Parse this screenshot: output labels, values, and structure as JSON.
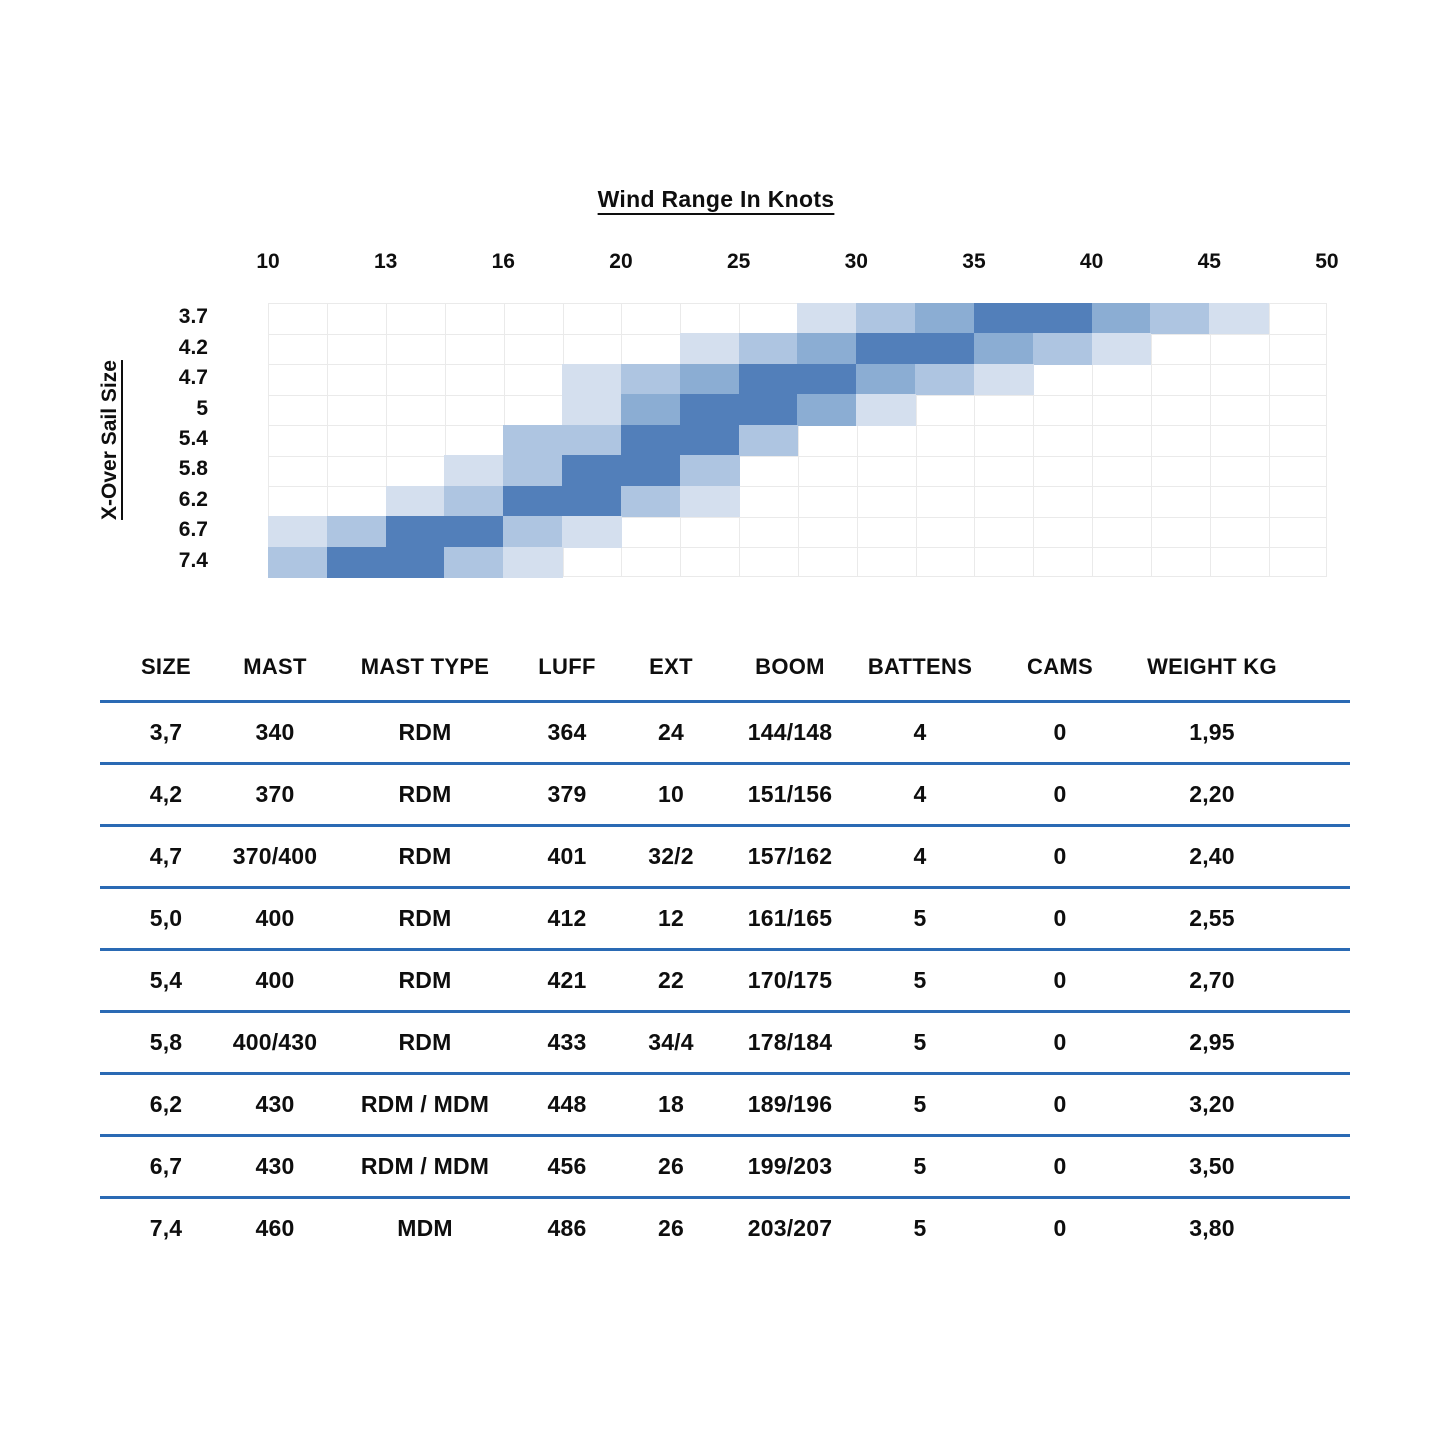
{
  "chart_data": {
    "type": "heatmap",
    "title": "Wind Range In Knots",
    "xlabel": "Wind Range In Knots",
    "ylabel": "X-Over Sail Size",
    "x_axis": {
      "ticks": [
        10,
        13,
        16,
        20,
        25,
        30,
        35,
        40,
        45,
        50
      ],
      "unit_boundaries_knots": [
        10,
        11.5,
        13,
        14.5,
        16,
        18,
        20,
        22.5,
        25,
        27.5,
        30,
        32.5,
        35,
        37.5,
        40,
        42.5,
        45,
        47.5,
        50
      ]
    },
    "grid": {
      "columns": 18,
      "rows": 9,
      "line_color": "#eaeaea"
    },
    "legend_note": "cell shade level 1=lightest usable wind, 4=ideal wind range",
    "level_colors": {
      "1": "#d4dfee",
      "2": "#aec5e1",
      "3": "#8badd3",
      "4": "#527fba"
    },
    "rows": [
      {
        "sail_size": "3.7",
        "wind_range_knots": [
          27.5,
          47.5
        ],
        "cells": [
          {
            "u": 9,
            "from_knots": 27.5,
            "to_knots": 30,
            "level": 1
          },
          {
            "u": 10,
            "from_knots": 30,
            "to_knots": 32.5,
            "level": 2
          },
          {
            "u": 11,
            "from_knots": 32.5,
            "to_knots": 35,
            "level": 3
          },
          {
            "u": 12,
            "from_knots": 35,
            "to_knots": 37.5,
            "level": 4
          },
          {
            "u": 13,
            "from_knots": 37.5,
            "to_knots": 40,
            "level": 4
          },
          {
            "u": 14,
            "from_knots": 40,
            "to_knots": 42.5,
            "level": 3
          },
          {
            "u": 15,
            "from_knots": 42.5,
            "to_knots": 45,
            "level": 2
          },
          {
            "u": 16,
            "from_knots": 45,
            "to_knots": 47.5,
            "level": 1
          }
        ]
      },
      {
        "sail_size": "4.2",
        "wind_range_knots": [
          22.5,
          42.5
        ],
        "cells": [
          {
            "u": 7,
            "from_knots": 22.5,
            "to_knots": 25,
            "level": 1
          },
          {
            "u": 8,
            "from_knots": 25,
            "to_knots": 27.5,
            "level": 2
          },
          {
            "u": 9,
            "from_knots": 27.5,
            "to_knots": 30,
            "level": 3
          },
          {
            "u": 10,
            "from_knots": 30,
            "to_knots": 32.5,
            "level": 4
          },
          {
            "u": 11,
            "from_knots": 32.5,
            "to_knots": 35,
            "level": 4
          },
          {
            "u": 12,
            "from_knots": 35,
            "to_knots": 37.5,
            "level": 3
          },
          {
            "u": 13,
            "from_knots": 37.5,
            "to_knots": 40,
            "level": 2
          },
          {
            "u": 14,
            "from_knots": 40,
            "to_knots": 42.5,
            "level": 1
          }
        ]
      },
      {
        "sail_size": "4.7",
        "wind_range_knots": [
          18,
          37.5
        ],
        "cells": [
          {
            "u": 5,
            "from_knots": 18,
            "to_knots": 20,
            "level": 1
          },
          {
            "u": 6,
            "from_knots": 20,
            "to_knots": 22.5,
            "level": 2
          },
          {
            "u": 7,
            "from_knots": 22.5,
            "to_knots": 25,
            "level": 3
          },
          {
            "u": 8,
            "from_knots": 25,
            "to_knots": 27.5,
            "level": 4
          },
          {
            "u": 9,
            "from_knots": 27.5,
            "to_knots": 30,
            "level": 4
          },
          {
            "u": 10,
            "from_knots": 30,
            "to_knots": 32.5,
            "level": 3
          },
          {
            "u": 11,
            "from_knots": 32.5,
            "to_knots": 35,
            "level": 2
          },
          {
            "u": 12,
            "from_knots": 35,
            "to_knots": 37.5,
            "level": 1
          }
        ]
      },
      {
        "sail_size": "5",
        "wind_range_knots": [
          18,
          32.5
        ],
        "cells": [
          {
            "u": 5,
            "from_knots": 18,
            "to_knots": 20,
            "level": 1
          },
          {
            "u": 6,
            "from_knots": 20,
            "to_knots": 22.5,
            "level": 3
          },
          {
            "u": 7,
            "from_knots": 22.5,
            "to_knots": 25,
            "level": 4
          },
          {
            "u": 8,
            "from_knots": 25,
            "to_knots": 27.5,
            "level": 4
          },
          {
            "u": 9,
            "from_knots": 27.5,
            "to_knots": 30,
            "level": 3
          },
          {
            "u": 10,
            "from_knots": 30,
            "to_knots": 32.5,
            "level": 1
          }
        ]
      },
      {
        "sail_size": "5.4",
        "wind_range_knots": [
          16,
          27.5
        ],
        "cells": [
          {
            "u": 4,
            "from_knots": 16,
            "to_knots": 18,
            "level": 2
          },
          {
            "u": 5,
            "from_knots": 18,
            "to_knots": 20,
            "level": 2
          },
          {
            "u": 6,
            "from_knots": 20,
            "to_knots": 22.5,
            "level": 4
          },
          {
            "u": 7,
            "from_knots": 22.5,
            "to_knots": 25,
            "level": 4
          },
          {
            "u": 8,
            "from_knots": 25,
            "to_knots": 27.5,
            "level": 2
          }
        ]
      },
      {
        "sail_size": "5.8",
        "wind_range_knots": [
          14.5,
          25
        ],
        "cells": [
          {
            "u": 3,
            "from_knots": 14.5,
            "to_knots": 16,
            "level": 1
          },
          {
            "u": 4,
            "from_knots": 16,
            "to_knots": 18,
            "level": 2
          },
          {
            "u": 5,
            "from_knots": 18,
            "to_knots": 20,
            "level": 4
          },
          {
            "u": 6,
            "from_knots": 20,
            "to_knots": 22.5,
            "level": 4
          },
          {
            "u": 7,
            "from_knots": 22.5,
            "to_knots": 25,
            "level": 2
          }
        ]
      },
      {
        "sail_size": "6.2",
        "wind_range_knots": [
          13,
          25
        ],
        "cells": [
          {
            "u": 2,
            "from_knots": 13,
            "to_knots": 14.5,
            "level": 1
          },
          {
            "u": 3,
            "from_knots": 14.5,
            "to_knots": 16,
            "level": 2
          },
          {
            "u": 4,
            "from_knots": 16,
            "to_knots": 18,
            "level": 4
          },
          {
            "u": 5,
            "from_knots": 18,
            "to_knots": 20,
            "level": 4
          },
          {
            "u": 6,
            "from_knots": 20,
            "to_knots": 22.5,
            "level": 2
          },
          {
            "u": 7,
            "from_knots": 22.5,
            "to_knots": 25,
            "level": 1
          }
        ]
      },
      {
        "sail_size": "6.7",
        "wind_range_knots": [
          10,
          20
        ],
        "cells": [
          {
            "u": 0,
            "from_knots": 10,
            "to_knots": 11.5,
            "level": 1
          },
          {
            "u": 1,
            "from_knots": 11.5,
            "to_knots": 13,
            "level": 2
          },
          {
            "u": 2,
            "from_knots": 13,
            "to_knots": 14.5,
            "level": 4
          },
          {
            "u": 3,
            "from_knots": 14.5,
            "to_knots": 16,
            "level": 4
          },
          {
            "u": 4,
            "from_knots": 16,
            "to_knots": 18,
            "level": 2
          },
          {
            "u": 5,
            "from_knots": 18,
            "to_knots": 20,
            "level": 1
          }
        ]
      },
      {
        "sail_size": "7.4",
        "wind_range_knots": [
          10,
          18
        ],
        "cells": [
          {
            "u": 0,
            "from_knots": 10,
            "to_knots": 11.5,
            "level": 2
          },
          {
            "u": 1,
            "from_knots": 11.5,
            "to_knots": 13,
            "level": 4
          },
          {
            "u": 2,
            "from_knots": 13,
            "to_knots": 14.5,
            "level": 4
          },
          {
            "u": 3,
            "from_knots": 14.5,
            "to_knots": 16,
            "level": 2
          },
          {
            "u": 4,
            "from_knots": 16,
            "to_knots": 18,
            "level": 1
          }
        ]
      }
    ]
  },
  "table": {
    "columns": [
      "SIZE",
      "MAST",
      "MAST TYPE",
      "LUFF",
      "EXT",
      "BOOM",
      "BATTENS",
      "CAMS",
      "WEIGHT KG"
    ],
    "rule_color": "#2a6ab4",
    "rows": [
      [
        "3,7",
        "340",
        "RDM",
        "364",
        "24",
        "144/148",
        "4",
        "0",
        "1,95"
      ],
      [
        "4,2",
        "370",
        "RDM",
        "379",
        "10",
        "151/156",
        "4",
        "0",
        "2,20"
      ],
      [
        "4,7",
        "370/400",
        "RDM",
        "401",
        "32/2",
        "157/162",
        "4",
        "0",
        "2,40"
      ],
      [
        "5,0",
        "400",
        "RDM",
        "412",
        "12",
        "161/165",
        "5",
        "0",
        "2,55"
      ],
      [
        "5,4",
        "400",
        "RDM",
        "421",
        "22",
        "170/175",
        "5",
        "0",
        "2,70"
      ],
      [
        "5,8",
        "400/430",
        "RDM",
        "433",
        "34/4",
        "178/184",
        "5",
        "0",
        "2,95"
      ],
      [
        "6,2",
        "430",
        "RDM / MDM",
        "448",
        "18",
        "189/196",
        "5",
        "0",
        "3,20"
      ],
      [
        "6,7",
        "430",
        "RDM / MDM",
        "456",
        "26",
        "199/203",
        "5",
        "0",
        "3,50"
      ],
      [
        "7,4",
        "460",
        "MDM",
        "486",
        "26",
        "203/207",
        "5",
        "0",
        "3,80"
      ]
    ]
  }
}
